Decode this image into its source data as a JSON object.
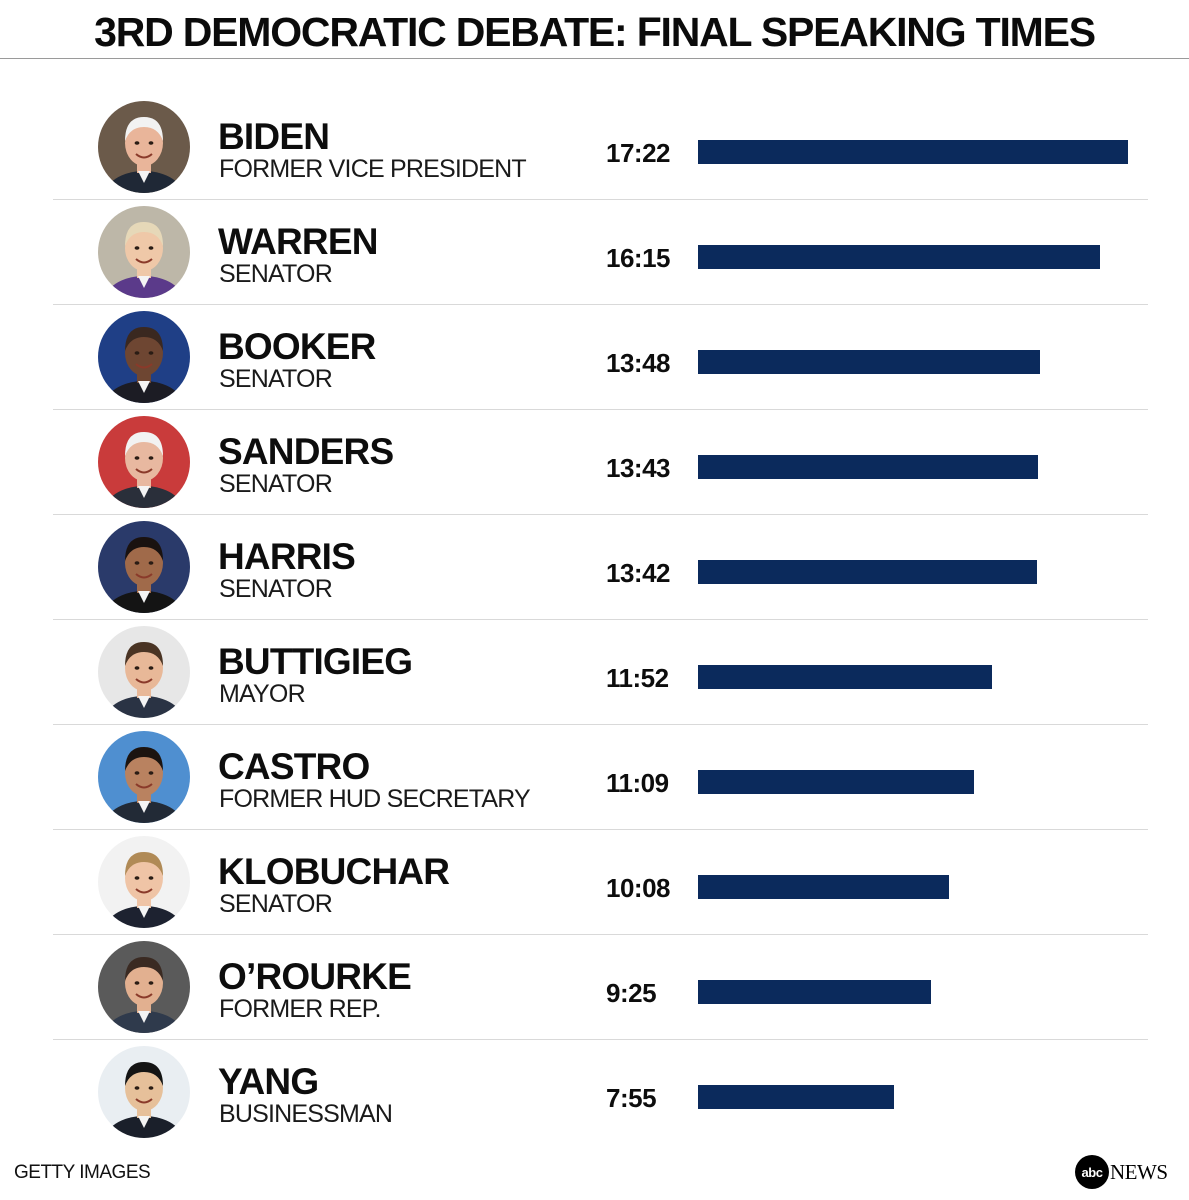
{
  "title": "3RD DEMOCRATIC DEBATE: FINAL SPEAKING TIMES",
  "source": "GETTY IMAGES",
  "logo": {
    "mark": "abc",
    "word": "NEWS"
  },
  "colors": {
    "bar": "#0b2a5c"
  },
  "chart_data": {
    "type": "bar",
    "orientation": "horizontal",
    "title": "3RD DEMOCRATIC DEBATE: FINAL SPEAKING TIMES",
    "unit": "minutes:seconds",
    "xlim": [
      0,
      17.37
    ],
    "grid": false,
    "legend": "none",
    "categories": [
      "BIDEN",
      "WARREN",
      "BOOKER",
      "SANDERS",
      "HARRIS",
      "BUTTIGIEG",
      "CASTRO",
      "KLOBUCHAR",
      "O’ROURKE",
      "YANG"
    ],
    "subtitles": [
      "FORMER VICE PRESIDENT",
      "SENATOR",
      "SENATOR",
      "SENATOR",
      "SENATOR",
      "MAYOR",
      "FORMER HUD SECRETARY",
      "SENATOR",
      "FORMER REP.",
      "BUSINESSMAN"
    ],
    "labels": [
      "17:22",
      "16:15",
      "13:48",
      "13:43",
      "13:42",
      "11:52",
      "11:09",
      "10:08",
      "9:25",
      "7:55"
    ],
    "values": [
      17.37,
      16.25,
      13.8,
      13.72,
      13.7,
      11.87,
      11.15,
      10.13,
      9.42,
      7.92
    ]
  },
  "avatars": [
    {
      "icon": "portrait-biden-icon",
      "bg": "#6b5a4a",
      "skin": "#e9b59a",
      "hair": "#f2f2f2",
      "suit": "#1f2836"
    },
    {
      "icon": "portrait-warren-icon",
      "bg": "#bdb7a8",
      "skin": "#efc8a8",
      "hair": "#e6d8b8",
      "suit": "#5b3a8a"
    },
    {
      "icon": "portrait-booker-icon",
      "bg": "#1f3f86",
      "skin": "#6e4632",
      "hair": "#3a2820",
      "suit": "#1c1c24"
    },
    {
      "icon": "portrait-sanders-icon",
      "bg": "#c93b3b",
      "skin": "#e8b8a0",
      "hair": "#f2f2f2",
      "suit": "#2a2f3a"
    },
    {
      "icon": "portrait-harris-icon",
      "bg": "#2a3a6a",
      "skin": "#a06a4a",
      "hair": "#1a1210",
      "suit": "#141414"
    },
    {
      "icon": "portrait-buttigieg-icon",
      "bg": "#e7e7e7",
      "skin": "#e8b898",
      "hair": "#4a3424",
      "suit": "#2a3344"
    },
    {
      "icon": "portrait-castro-icon",
      "bg": "#4f8fd0",
      "skin": "#b98260",
      "hair": "#1c1410",
      "suit": "#222a36"
    },
    {
      "icon": "portrait-klobuchar-icon",
      "bg": "#f2f2f2",
      "skin": "#efc4a6",
      "hair": "#b08a56",
      "suit": "#1d2230"
    },
    {
      "icon": "portrait-orourke-icon",
      "bg": "#5a5a5a",
      "skin": "#e2b090",
      "hair": "#3a2a22",
      "suit": "#2f3a4c"
    },
    {
      "icon": "portrait-yang-icon",
      "bg": "#e9eef2",
      "skin": "#e6c09a",
      "hair": "#141414",
      "suit": "#1a1f2a"
    }
  ]
}
